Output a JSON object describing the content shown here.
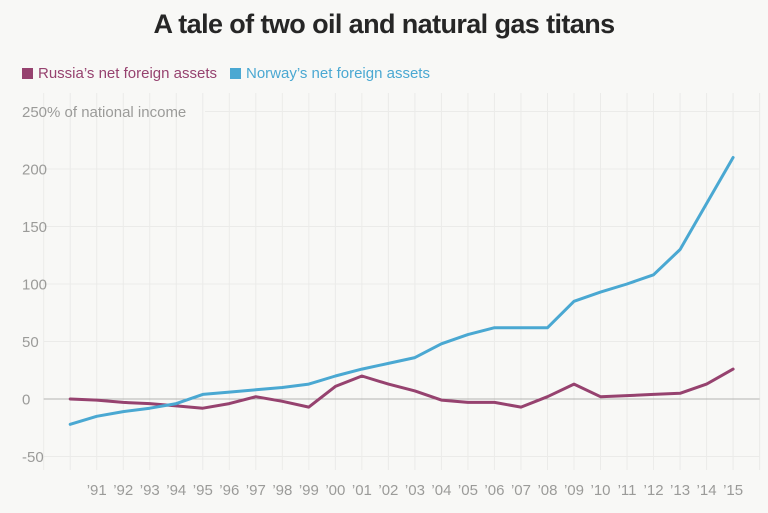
{
  "title": "A tale of two oil and natural gas titans",
  "legend": {
    "position": "top-left",
    "items": [
      {
        "label": "Russia’s net foreign assets",
        "color": "#96426f"
      },
      {
        "label": "Norway’s net foreign assets",
        "color": "#4aa8d2"
      }
    ]
  },
  "chart_data": {
    "type": "line",
    "title": "A tale of two oil and natural gas titans",
    "unit_label": "250% of national income",
    "xlabel": "",
    "ylabel": "% of national income",
    "x": [
      1990,
      1991,
      1992,
      1993,
      1994,
      1995,
      1996,
      1997,
      1998,
      1999,
      2000,
      2001,
      2002,
      2003,
      2004,
      2005,
      2006,
      2007,
      2008,
      2009,
      2010,
      2011,
      2012,
      2013,
      2014,
      2015
    ],
    "x_tick_labels": [
      "’91",
      "’92",
      "’93",
      "’94",
      "’95",
      "’96",
      "’97",
      "’98",
      "’99",
      "’00",
      "’01",
      "’02",
      "’03",
      "’04",
      "’05",
      "’06",
      "’07",
      "’08",
      "’09",
      "’10",
      "’11",
      "’12",
      "’13",
      "’14",
      "’15"
    ],
    "series": [
      {
        "name": "Russia’s net foreign assets",
        "color": "#96426f",
        "values": [
          0,
          -1,
          -3,
          -4,
          -6,
          -8,
          -4,
          2,
          -2,
          -7,
          11,
          20,
          13,
          7,
          -1,
          -3,
          -3,
          -7,
          2,
          13,
          2,
          3,
          4,
          5,
          13,
          26
        ]
      },
      {
        "name": "Norway’s net foreign assets",
        "color": "#4aa8d2",
        "values": [
          -22,
          -15,
          -11,
          -8,
          -4,
          4,
          6,
          8,
          10,
          13,
          20,
          26,
          31,
          36,
          48,
          56,
          62,
          62,
          62,
          85,
          93,
          100,
          108,
          130,
          170,
          210
        ]
      }
    ],
    "yticks": [
      -50,
      0,
      50,
      100,
      150,
      200,
      250
    ],
    "ylim": [
      -50,
      250
    ],
    "xlim": [
      1989,
      2016
    ],
    "grid": true,
    "legend_position": "top-left",
    "style": {
      "background": "#f8f8f6",
      "title_color": "#262626",
      "grid_color": "#ebebe9",
      "zero_line_color": "#b3b3b1",
      "tick_text_color": "#9b9b99"
    }
  }
}
